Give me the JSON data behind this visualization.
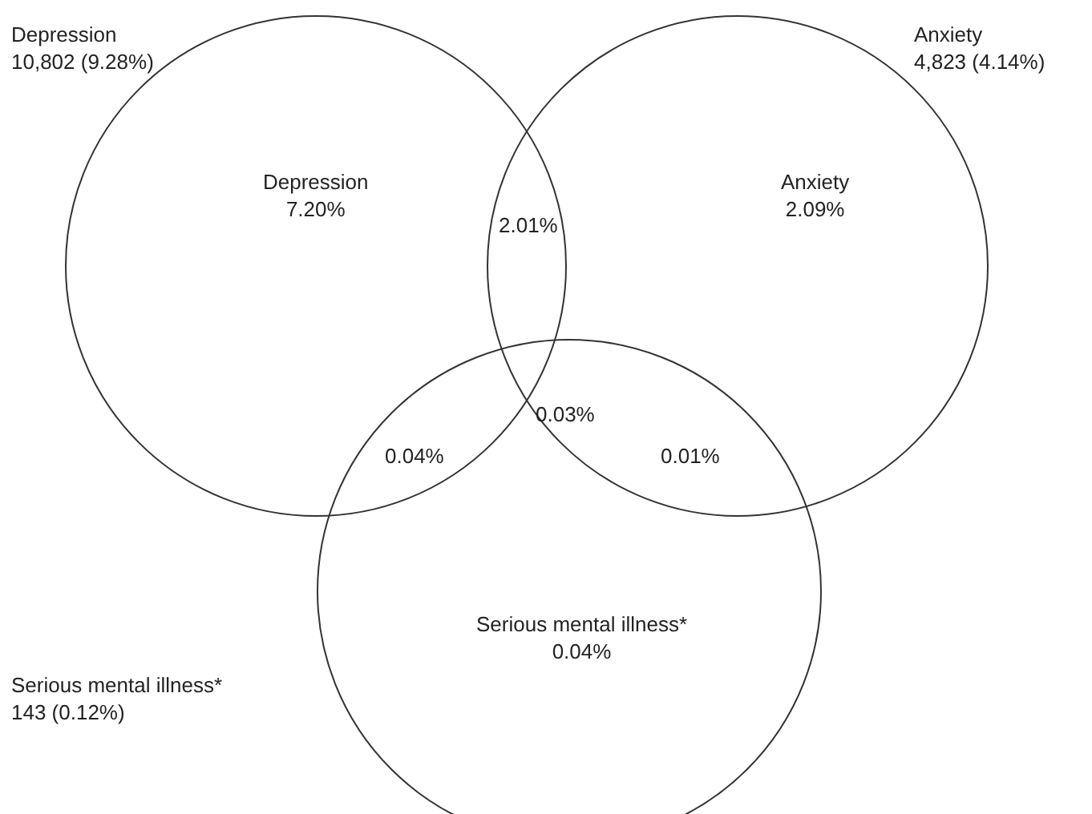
{
  "chart_data": {
    "type": "other",
    "categories": [
      "Depression",
      "Anxiety",
      "Serious mental illness*"
    ],
    "values": [
      10802,
      4823,
      143
    ],
    "value_labels": [
      "10,802 (9.28%)",
      "4,823 (4.14%)",
      "143 (0.12%)"
    ],
    "annotations": [
      "7.20%",
      "2.09%",
      "0.04%",
      "2.01%",
      "0.04%",
      "0.01%",
      "0.03%"
    ]
  }
}
